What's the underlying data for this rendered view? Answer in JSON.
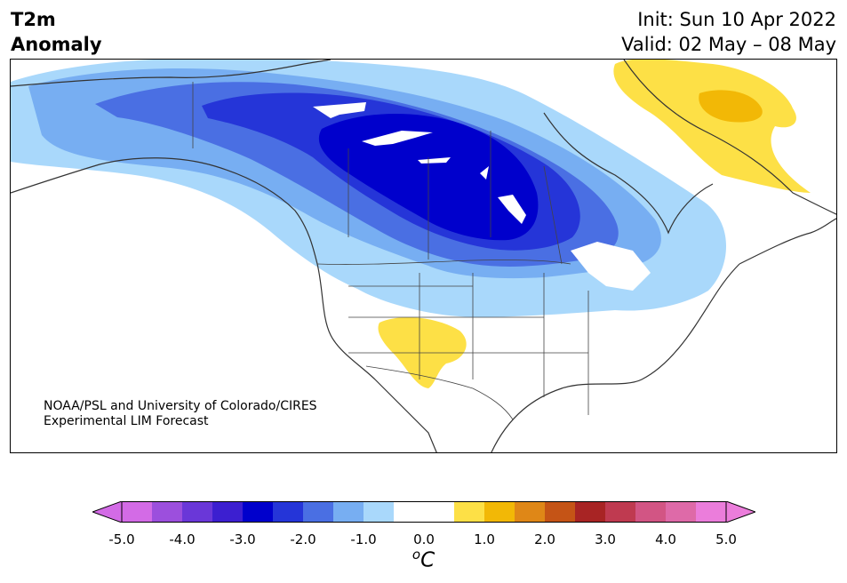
{
  "header": {
    "title_line1": "T2m",
    "title_line2": "Anomaly",
    "init_text": "Init: Sun 10 Apr 2022",
    "valid_text": "Valid: 02 May – 08 May"
  },
  "credit": {
    "line1": "NOAA/PSL and University of Colorado/CIRES",
    "line2": "Experimental LIM Forecast"
  },
  "colorbar": {
    "units_base": "C",
    "units_sup": "o",
    "tick_labels": [
      "-5.0",
      "-4.0",
      "-3.0",
      "-2.0",
      "-1.0",
      "0.0",
      "1.0",
      "2.0",
      "3.0",
      "4.0",
      "5.0"
    ],
    "colors": [
      "#d36be6",
      "#9c4fdd",
      "#6a37d8",
      "#3c1fd0",
      "#0000cc",
      "#2535d8",
      "#4a6fe3",
      "#77aef2",
      "#a9d8fb",
      "#ffffff",
      "#ffffff",
      "#fde046",
      "#f2b806",
      "#df8717",
      "#c55416",
      "#a82424",
      "#bf3a50",
      "#d25584",
      "#de6aa8",
      "#eb7ddb"
    ],
    "under_color": "#d36be6",
    "over_color": "#eb7ddb"
  },
  "map": {
    "anomaly_colors": {
      "neg_0_5": "#a9d8fb",
      "neg_1_0": "#77aef2",
      "neg_1_5": "#4a6fe3",
      "neg_2_0": "#2535d8",
      "neg_2_5": "#0000cc",
      "pos_0_5": "#fde046",
      "pos_1_0": "#f2b806"
    },
    "coastline_color": "#333333"
  }
}
